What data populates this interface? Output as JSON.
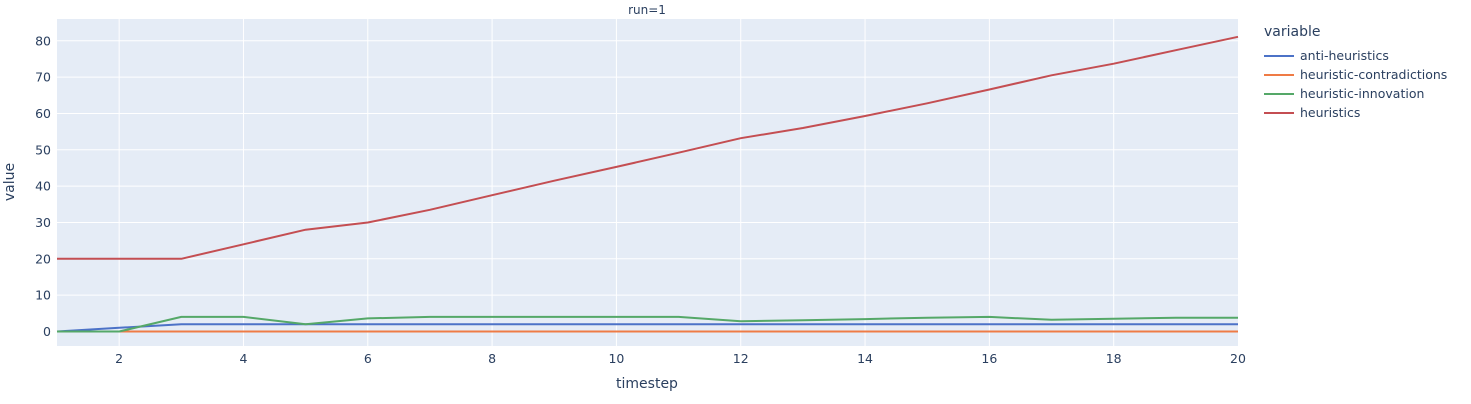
{
  "chart_data": {
    "type": "line",
    "title": "run=1",
    "xlabel": "timestep",
    "ylabel": "value",
    "xlim": [
      1,
      20
    ],
    "ylim": [
      -4,
      86
    ],
    "x_ticks": [
      2,
      4,
      6,
      8,
      10,
      12,
      14,
      16,
      18,
      20
    ],
    "y_ticks": [
      0,
      10,
      20,
      30,
      40,
      50,
      60,
      70,
      80
    ],
    "grid": true,
    "legend_title": "variable",
    "legend_position": "right",
    "x": [
      1,
      2,
      3,
      4,
      5,
      6,
      7,
      8,
      9,
      10,
      11,
      12,
      13,
      14,
      15,
      16,
      17,
      18,
      19,
      20
    ],
    "series": [
      {
        "name": "anti-heuristics",
        "color": "#4c72c7",
        "values": [
          0,
          1,
          2,
          2,
          2,
          2,
          2,
          2,
          2,
          2,
          2,
          2,
          2,
          2,
          2,
          2,
          2,
          2,
          2,
          2
        ]
      },
      {
        "name": "heuristic-contradictions",
        "color": "#ef7b45",
        "values": [
          0,
          0,
          0,
          0,
          0,
          0,
          0,
          0,
          0,
          0,
          0,
          0,
          0,
          0,
          0,
          0,
          0,
          0,
          0,
          0
        ]
      },
      {
        "name": "heuristic-innovation",
        "color": "#55a868",
        "values": [
          0,
          0,
          4,
          4,
          2,
          3.6,
          4,
          4,
          4,
          4,
          4,
          2.8,
          3.1,
          3.4,
          3.8,
          4,
          3.2,
          3.5,
          3.8,
          3.8
        ]
      },
      {
        "name": "heuristics",
        "color": "#c44e52",
        "values": [
          20,
          20,
          20,
          24,
          28,
          30,
          33.5,
          37.5,
          41.5,
          45.3,
          49.2,
          53.2,
          56,
          59.3,
          62.8,
          66.6,
          70.5,
          73.7,
          77.4,
          81.1
        ]
      }
    ]
  }
}
